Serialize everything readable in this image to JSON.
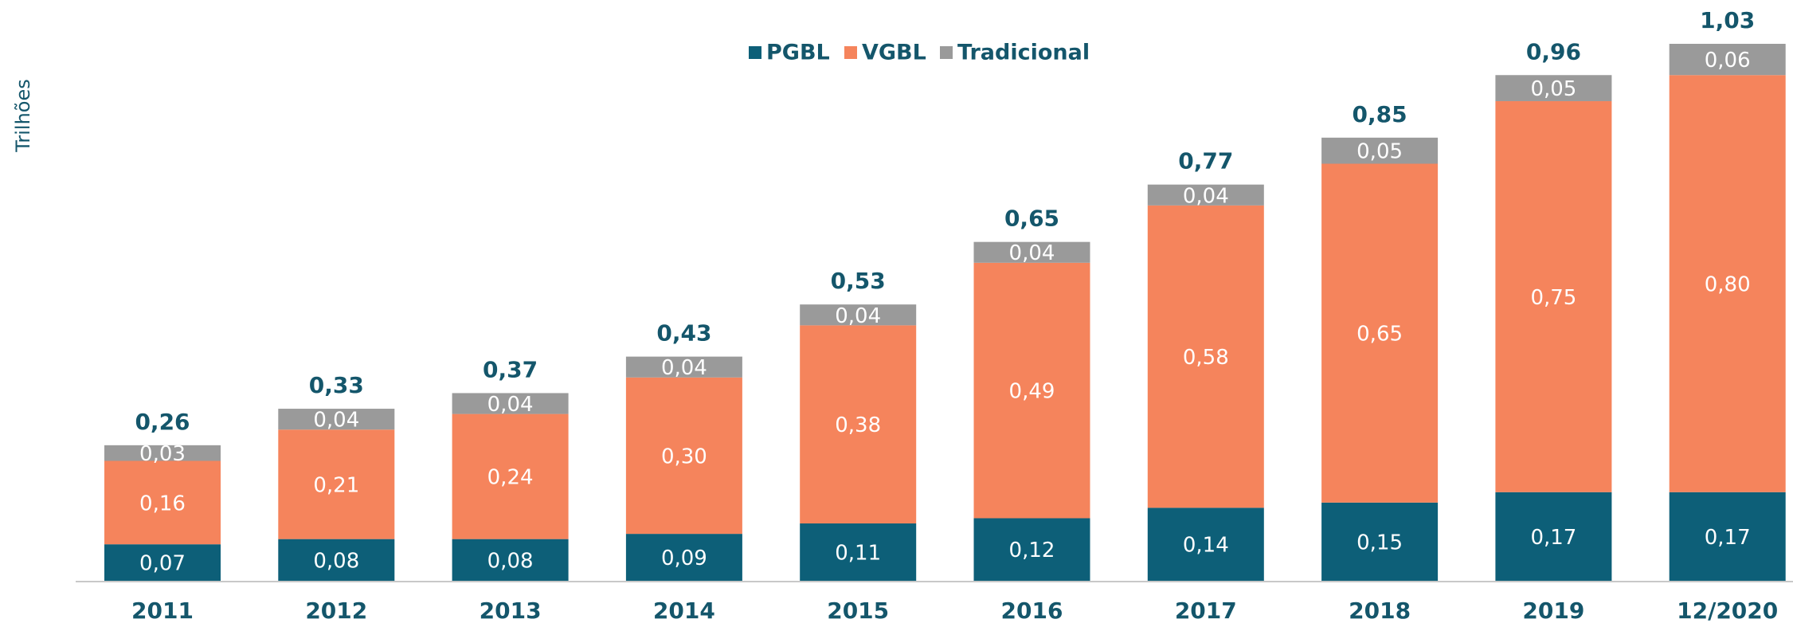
{
  "chart_data": {
    "type": "stacked-bar",
    "y_label": "Trilhões",
    "categories": [
      "2011",
      "2012",
      "2013",
      "2014",
      "2015",
      "2016",
      "2017",
      "2018",
      "2019",
      "12/2020"
    ],
    "series": [
      {
        "name": "PGBL",
        "color": "#0d5f78",
        "values": [
          0.07,
          0.08,
          0.08,
          0.09,
          0.11,
          0.12,
          0.14,
          0.15,
          0.17,
          0.17
        ],
        "value_labels": [
          "0,07",
          "0,08",
          "0,08",
          "0,09",
          "0,11",
          "0,12",
          "0,14",
          "0,15",
          "0,17",
          "0,17"
        ]
      },
      {
        "name": "VGBL",
        "color": "#f5845c",
        "values": [
          0.16,
          0.21,
          0.24,
          0.3,
          0.38,
          0.49,
          0.58,
          0.65,
          0.75,
          0.8
        ],
        "value_labels": [
          "0,16",
          "0,21",
          "0,24",
          "0,30",
          "0,38",
          "0,49",
          "0,58",
          "0,65",
          "0,75",
          "0,80"
        ]
      },
      {
        "name": "Tradicional",
        "color": "#9a9a9a",
        "values": [
          0.03,
          0.04,
          0.04,
          0.04,
          0.04,
          0.04,
          0.04,
          0.05,
          0.05,
          0.06
        ],
        "value_labels": [
          "0,03",
          "0,04",
          "0,04",
          "0,04",
          "0,04",
          "0,04",
          "0,04",
          "0,05",
          "0,05",
          "0,06"
        ]
      }
    ],
    "totals": [
      0.26,
      0.33,
      0.37,
      0.43,
      0.53,
      0.65,
      0.77,
      0.85,
      0.96,
      1.03
    ],
    "total_labels": [
      "0,26",
      "0,33",
      "0,37",
      "0,43",
      "0,53",
      "0,65",
      "0,77",
      "0,85",
      "0,96",
      "1,03"
    ],
    "legend": "top"
  }
}
